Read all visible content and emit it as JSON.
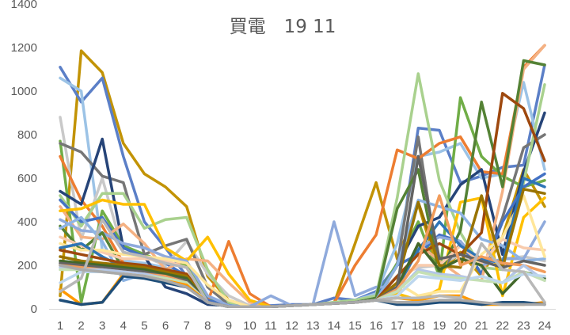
{
  "chart_data": {
    "type": "line",
    "title": "買電　19 11",
    "xlabel": "",
    "ylabel": "",
    "ylim": [
      0,
      1400
    ],
    "y_ticks": [
      0,
      200,
      400,
      600,
      800,
      1000,
      1200,
      1400
    ],
    "grid": false,
    "legend": "none",
    "categories": [
      "1",
      "2",
      "3",
      "4",
      "5",
      "6",
      "7",
      "8",
      "9",
      "10",
      "11",
      "12",
      "13",
      "14",
      "15",
      "16",
      "17",
      "18",
      "19",
      "20",
      "21",
      "22",
      "23",
      "24"
    ],
    "series": [
      {
        "color": "#c29305",
        "values": [
          60,
          1185,
          1085,
          760,
          620,
          560,
          470,
          150,
          40,
          10,
          10,
          15,
          20,
          25,
          300,
          580,
          230,
          480,
          160,
          260,
          150,
          330,
          640,
          470
        ]
      },
      {
        "color": "#5b7fc7",
        "values": [
          1110,
          950,
          1060,
          700,
          400,
          280,
          150,
          50,
          20,
          15,
          15,
          20,
          20,
          50,
          40,
          80,
          200,
          830,
          820,
          580,
          610,
          650,
          660,
          1120
        ]
      },
      {
        "color": "#9cc3e6",
        "values": [
          1060,
          1000,
          270,
          220,
          210,
          190,
          150,
          60,
          20,
          10,
          10,
          15,
          20,
          30,
          40,
          70,
          300,
          700,
          720,
          760,
          600,
          620,
          1040,
          640
        ]
      },
      {
        "color": "#c9c9c9",
        "values": [
          880,
          320,
          600,
          260,
          240,
          200,
          310,
          160,
          60,
          15,
          10,
          15,
          20,
          25,
          40,
          60,
          150,
          190,
          200,
          250,
          200,
          230,
          240,
          220
        ]
      },
      {
        "color": "#70ad47",
        "values": [
          770,
          30,
          450,
          290,
          250,
          210,
          200,
          50,
          15,
          10,
          10,
          15,
          20,
          25,
          30,
          50,
          210,
          400,
          150,
          970,
          700,
          610,
          560,
          590
        ]
      },
      {
        "color": "#767676",
        "values": [
          760,
          720,
          610,
          580,
          250,
          290,
          320,
          100,
          20,
          10,
          10,
          15,
          20,
          25,
          30,
          40,
          200,
          790,
          160,
          300,
          160,
          420,
          740,
          800
        ]
      },
      {
        "color": "#ed7d31",
        "values": [
          700,
          500,
          380,
          210,
          190,
          180,
          160,
          30,
          310,
          70,
          10,
          15,
          20,
          25,
          200,
          340,
          730,
          690,
          760,
          790,
          630,
          620,
          1110,
          1210
        ]
      },
      {
        "color": "#264478",
        "values": [
          540,
          480,
          780,
          280,
          240,
          100,
          70,
          20,
          15,
          10,
          10,
          15,
          20,
          25,
          30,
          40,
          200,
          380,
          420,
          570,
          640,
          250,
          630,
          900
        ]
      },
      {
        "color": "#a9d18e",
        "values": [
          520,
          380,
          530,
          530,
          370,
          410,
          420,
          180,
          30,
          10,
          10,
          15,
          20,
          30,
          40,
          60,
          510,
          1080,
          590,
          350,
          190,
          180,
          580,
          1030
        ]
      },
      {
        "color": "#4472c4",
        "values": [
          500,
          400,
          420,
          280,
          240,
          210,
          150,
          40,
          15,
          10,
          10,
          15,
          20,
          25,
          30,
          50,
          200,
          250,
          340,
          310,
          160,
          400,
          560,
          620
        ]
      },
      {
        "color": "#f4b183",
        "values": [
          470,
          330,
          320,
          390,
          300,
          180,
          230,
          220,
          120,
          30,
          10,
          15,
          20,
          25,
          30,
          40,
          50,
          300,
          220,
          150,
          130,
          540,
          1100,
          1210
        ]
      },
      {
        "color": "#ffc000",
        "values": [
          450,
          460,
          500,
          480,
          480,
          280,
          220,
          330,
          160,
          40,
          10,
          15,
          20,
          25,
          30,
          40,
          70,
          40,
          90,
          490,
          510,
          60,
          420,
          510
        ]
      },
      {
        "color": "#8faadc",
        "values": [
          410,
          360,
          350,
          300,
          280,
          240,
          220,
          60,
          15,
          10,
          60,
          15,
          20,
          400,
          60,
          100,
          100,
          280,
          330,
          310,
          200,
          230,
          230,
          400
        ]
      },
      {
        "color": "#548235",
        "values": [
          380,
          270,
          350,
          180,
          150,
          140,
          120,
          30,
          10,
          10,
          10,
          15,
          20,
          25,
          30,
          50,
          460,
          640,
          160,
          360,
          950,
          560,
          1140,
          1120
        ]
      },
      {
        "color": "#8eb4e3",
        "values": [
          370,
          420,
          310,
          130,
          160,
          130,
          120,
          30,
          10,
          10,
          10,
          15,
          20,
          25,
          30,
          40,
          200,
          500,
          470,
          440,
          320,
          290,
          220,
          230
        ]
      },
      {
        "color": "#f8cbad",
        "values": [
          330,
          290,
          260,
          230,
          230,
          220,
          190,
          30,
          10,
          10,
          10,
          15,
          20,
          25,
          30,
          40,
          120,
          200,
          200,
          290,
          210,
          320,
          280,
          270
        ]
      },
      {
        "color": "#ffe699",
        "values": [
          300,
          270,
          270,
          250,
          240,
          230,
          210,
          110,
          40,
          10,
          10,
          15,
          20,
          25,
          30,
          40,
          120,
          60,
          80,
          80,
          250,
          330,
          520,
          240
        ]
      },
      {
        "color": "#2e75b6",
        "values": [
          280,
          300,
          240,
          190,
          170,
          150,
          130,
          30,
          10,
          10,
          10,
          15,
          20,
          25,
          30,
          40,
          100,
          270,
          400,
          290,
          230,
          210,
          600,
          560
        ]
      },
      {
        "color": "#9e480e",
        "values": [
          270,
          250,
          230,
          210,
          200,
          180,
          160,
          30,
          10,
          10,
          10,
          15,
          20,
          25,
          30,
          40,
          150,
          250,
          300,
          250,
          350,
          990,
          920,
          680
        ]
      },
      {
        "color": "#997300",
        "values": [
          240,
          220,
          210,
          200,
          190,
          170,
          150,
          30,
          10,
          10,
          10,
          15,
          20,
          25,
          30,
          40,
          120,
          490,
          200,
          190,
          520,
          190,
          550,
          530
        ]
      },
      {
        "color": "#43682b",
        "values": [
          220,
          210,
          200,
          190,
          180,
          160,
          140,
          30,
          10,
          10,
          10,
          15,
          20,
          25,
          30,
          40,
          100,
          300,
          180,
          230,
          200,
          70,
          170,
          140
        ]
      },
      {
        "color": "#636363",
        "values": [
          210,
          200,
          190,
          180,
          170,
          150,
          130,
          30,
          10,
          10,
          10,
          15,
          20,
          25,
          30,
          40,
          100,
          700,
          230,
          250,
          220,
          190,
          220,
          200
        ]
      },
      {
        "color": "#f19c5b",
        "values": [
          200,
          190,
          180,
          170,
          160,
          150,
          120,
          30,
          10,
          10,
          10,
          15,
          20,
          25,
          30,
          40,
          90,
          220,
          520,
          200,
          240,
          210,
          200,
          170
        ]
      },
      {
        "color": "#b4c7e7",
        "values": [
          190,
          180,
          180,
          170,
          160,
          140,
          120,
          30,
          10,
          10,
          10,
          15,
          20,
          25,
          30,
          40,
          80,
          180,
          160,
          150,
          130,
          120,
          200,
          130
        ]
      },
      {
        "color": "#c5e0b4",
        "values": [
          180,
          180,
          170,
          160,
          150,
          140,
          120,
          30,
          10,
          10,
          10,
          15,
          20,
          25,
          30,
          40,
          80,
          170,
          150,
          140,
          130,
          120,
          170,
          130
        ]
      },
      {
        "color": "#bdd7ee",
        "values": [
          120,
          170,
          170,
          160,
          150,
          130,
          110,
          30,
          10,
          10,
          10,
          15,
          20,
          25,
          30,
          40,
          60,
          150,
          140,
          130,
          150,
          120,
          160,
          150
        ]
      },
      {
        "color": "#ff9900",
        "values": [
          90,
          20,
          30,
          160,
          150,
          130,
          110,
          30,
          10,
          10,
          10,
          15,
          20,
          25,
          30,
          40,
          50,
          40,
          60,
          60,
          20,
          20,
          20,
          30
        ]
      },
      {
        "color": "#b8b8b8",
        "values": [
          80,
          140,
          410,
          260,
          240,
          210,
          190,
          30,
          10,
          10,
          10,
          15,
          20,
          25,
          30,
          40,
          50,
          50,
          60,
          50,
          300,
          180,
          170,
          30
        ]
      },
      {
        "color": "#1f4e79",
        "values": [
          40,
          20,
          30,
          150,
          140,
          120,
          100,
          30,
          10,
          10,
          10,
          15,
          20,
          25,
          30,
          40,
          20,
          20,
          30,
          30,
          20,
          30,
          30,
          20
        ]
      },
      {
        "color": "#a9a9a9",
        "values": [
          200,
          180,
          170,
          160,
          150,
          130,
          100,
          30,
          10,
          10,
          10,
          15,
          20,
          25,
          30,
          40,
          30,
          30,
          40,
          40,
          30,
          20,
          20,
          20
        ]
      }
    ]
  }
}
